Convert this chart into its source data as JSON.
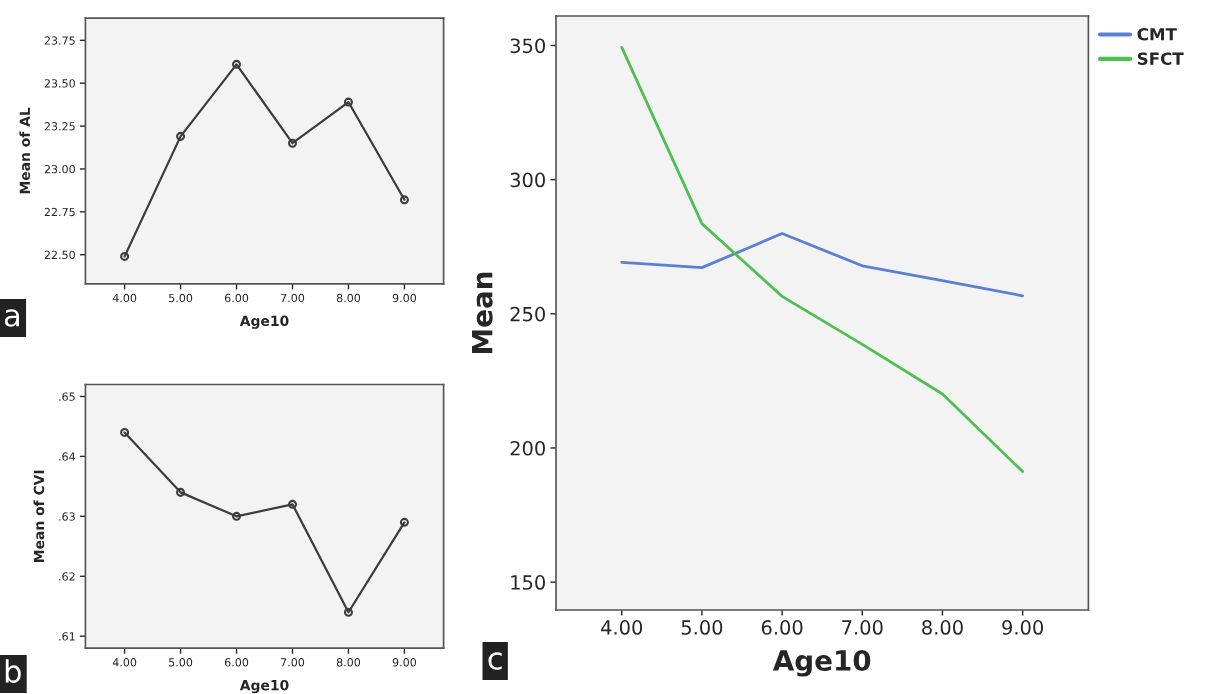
{
  "chart_data": [
    {
      "type": "line",
      "xlabel": "Age10",
      "ylabel": "Mean of AL",
      "x": [
        4,
        5,
        6,
        7,
        8,
        9
      ],
      "series": [
        {
          "color": "#3c3c3c",
          "values": [
            22.49,
            23.19,
            23.61,
            23.15,
            23.39,
            22.82
          ]
        }
      ],
      "xlim": [
        3.3,
        9.7
      ],
      "ylim": [
        22.33,
        23.88
      ],
      "xticks": [
        {
          "value": 4,
          "label": "4.00"
        },
        {
          "value": 5,
          "label": "5.00"
        },
        {
          "value": 6,
          "label": "6.00"
        },
        {
          "value": 7,
          "label": "7.00"
        },
        {
          "value": 8,
          "label": "8.00"
        },
        {
          "value": 9,
          "label": "9.00"
        }
      ],
      "yticks": [
        {
          "value": 22.5,
          "label": "22.50"
        },
        {
          "value": 22.75,
          "label": "22.75"
        },
        {
          "value": 23,
          "label": "23.00"
        },
        {
          "value": 23.25,
          "label": "23.25"
        },
        {
          "value": 23.5,
          "label": "23.50"
        },
        {
          "value": 23.75,
          "label": "23.75"
        }
      ],
      "marker": "circle",
      "grid": false,
      "legend": false,
      "annotations": [
        "a"
      ]
    },
    {
      "type": "line",
      "xlabel": "Age10",
      "ylabel": "Mean of CVI",
      "x": [
        4,
        5,
        6,
        7,
        8,
        9
      ],
      "series": [
        {
          "color": "#3c3c3c",
          "values": [
            0.644,
            0.634,
            0.63,
            0.632,
            0.614,
            0.629
          ]
        }
      ],
      "xlim": [
        3.3,
        9.7
      ],
      "ylim": [
        0.608,
        0.652
      ],
      "xticks": [
        {
          "value": 4,
          "label": "4.00"
        },
        {
          "value": 5,
          "label": "5.00"
        },
        {
          "value": 6,
          "label": "6.00"
        },
        {
          "value": 7,
          "label": "7.00"
        },
        {
          "value": 8,
          "label": "8.00"
        },
        {
          "value": 9,
          "label": "9.00"
        }
      ],
      "yticks": [
        {
          "value": 0.61,
          "label": ".61"
        },
        {
          "value": 0.62,
          "label": ".62"
        },
        {
          "value": 0.63,
          "label": ".63"
        },
        {
          "value": 0.64,
          "label": ".64"
        },
        {
          "value": 0.65,
          "label": ".65"
        }
      ],
      "marker": "circle",
      "grid": false,
      "legend": false,
      "annotations": [
        "b"
      ]
    },
    {
      "type": "line",
      "xlabel": "Age10",
      "ylabel": "Mean",
      "x": [
        4,
        5,
        6,
        7,
        8,
        9
      ],
      "series": [
        {
          "name": "CMT",
          "color": "#5b7fd6",
          "values": [
            269.2,
            267.2,
            279.9,
            267.9,
            262.4,
            256.7
          ]
        },
        {
          "name": "SFCT",
          "color": "#4fbf4f",
          "values": [
            349.3,
            283.6,
            256.5,
            238.6,
            220.1,
            191.2
          ]
        }
      ],
      "xlim": [
        3.18,
        9.82
      ],
      "ylim": [
        139.6,
        361
      ],
      "xticks": [
        {
          "value": 4,
          "label": "4.00"
        },
        {
          "value": 5,
          "label": "5.00"
        },
        {
          "value": 6,
          "label": "6.00"
        },
        {
          "value": 7,
          "label": "7.00"
        },
        {
          "value": 8,
          "label": "8.00"
        },
        {
          "value": 9,
          "label": "9.00"
        }
      ],
      "yticks": [
        150,
        200,
        250,
        300,
        350
      ],
      "marker": "none",
      "grid": false,
      "legend": "top right",
      "annotations": [
        "c"
      ]
    }
  ]
}
